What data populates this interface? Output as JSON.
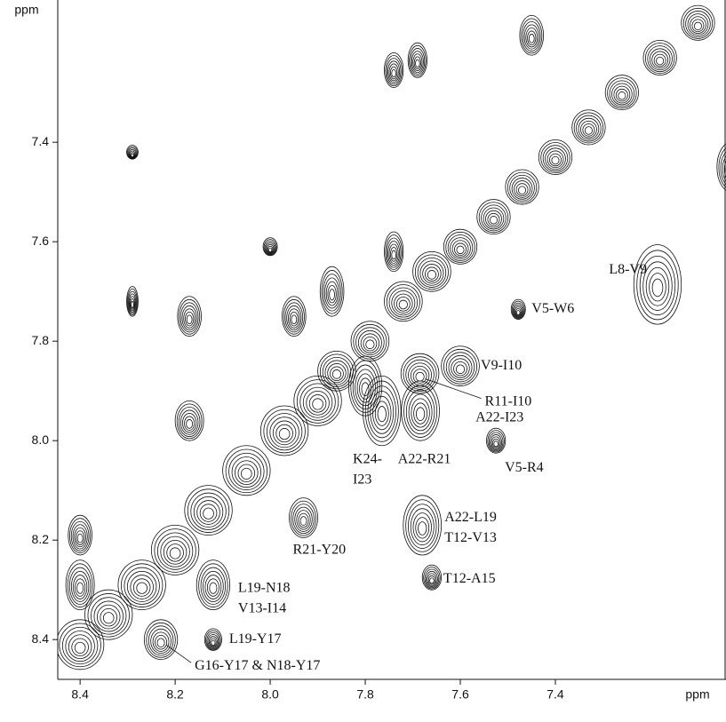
{
  "chart_data": {
    "type": "contour",
    "xlabel": "ppm",
    "ylabel": "ppm",
    "xlim": [
      8.447,
      7.041
    ],
    "ylim": [
      7.114,
      8.48
    ],
    "xticks": [
      8.4,
      8.2,
      {
        "value": 8,
        "label": "8.0"
      },
      7.8,
      7.6,
      7.4
    ],
    "yticks": [
      7.4,
      7.6,
      7.8,
      {
        "value": 8,
        "label": "8.0"
      },
      8.2,
      8.4
    ],
    "color": "#111111",
    "labeled_peaks": [
      {
        "x": 7.185,
        "y": 7.686,
        "w": 0.05,
        "h": 0.08,
        "label": [
          "L8-V9"
        ]
      },
      {
        "x": 7.478,
        "y": 7.736,
        "w": 0.015,
        "h": 0.02,
        "label": [
          "V5-W6"
        ]
      },
      {
        "x": 7.6,
        "y": 7.85,
        "w": 0.04,
        "h": 0.04,
        "label": [
          "V9-I10"
        ]
      },
      {
        "x": 7.685,
        "y": 7.865,
        "w": 0.04,
        "h": 0.04,
        "label": [
          "R11-I10"
        ]
      },
      {
        "x": 7.684,
        "y": 7.94,
        "w": 0.04,
        "h": 0.06,
        "label": [
          "A22-I23"
        ]
      },
      {
        "x": 7.525,
        "y": 8.0,
        "w": 0.02,
        "h": 0.025,
        "label": [
          "V5-R4"
        ]
      },
      {
        "x": 7.765,
        "y": 7.94,
        "w": 0.04,
        "h": 0.07,
        "label": [
          "A22-R21"
        ]
      },
      {
        "x": 7.8,
        "y": 7.89,
        "w": 0.035,
        "h": 0.06,
        "label": [
          "K24-",
          "I23"
        ]
      },
      {
        "x": 7.68,
        "y": 8.17,
        "w": 0.04,
        "h": 0.06,
        "label": [
          "A22-L19",
          "T12-V13"
        ]
      },
      {
        "x": 7.93,
        "y": 8.155,
        "w": 0.03,
        "h": 0.04,
        "label": [
          "R21-Y20"
        ]
      },
      {
        "x": 7.66,
        "y": 8.275,
        "w": 0.02,
        "h": 0.025,
        "label": [
          "T12-A15"
        ]
      },
      {
        "x": 8.12,
        "y": 8.29,
        "w": 0.035,
        "h": 0.05,
        "label": [
          "L19-N18",
          "V13-I14"
        ]
      },
      {
        "x": 8.12,
        "y": 8.4,
        "w": 0.018,
        "h": 0.022,
        "label": [
          "L19-Y17"
        ]
      },
      {
        "x": 8.23,
        "y": 8.4,
        "w": 0.035,
        "h": 0.04,
        "label": [
          "G16-Y17 & N18-Y17"
        ]
      }
    ],
    "peaks": [
      {
        "x": 8.4,
        "y": 8.41,
        "w": 0.05,
        "h": 0.05
      },
      {
        "x": 8.34,
        "y": 8.35,
        "w": 0.05,
        "h": 0.05
      },
      {
        "x": 8.27,
        "y": 8.29,
        "w": 0.05,
        "h": 0.05
      },
      {
        "x": 8.2,
        "y": 8.22,
        "w": 0.05,
        "h": 0.05
      },
      {
        "x": 8.13,
        "y": 8.14,
        "w": 0.05,
        "h": 0.05
      },
      {
        "x": 8.05,
        "y": 8.06,
        "w": 0.05,
        "h": 0.05
      },
      {
        "x": 7.97,
        "y": 7.98,
        "w": 0.05,
        "h": 0.05
      },
      {
        "x": 7.9,
        "y": 7.92,
        "w": 0.05,
        "h": 0.05
      },
      {
        "x": 7.86,
        "y": 7.86,
        "w": 0.04,
        "h": 0.04
      },
      {
        "x": 7.79,
        "y": 7.8,
        "w": 0.04,
        "h": 0.04
      },
      {
        "x": 7.72,
        "y": 7.72,
        "w": 0.04,
        "h": 0.04
      },
      {
        "x": 7.66,
        "y": 7.66,
        "w": 0.04,
        "h": 0.04
      },
      {
        "x": 7.6,
        "y": 7.61,
        "w": 0.035,
        "h": 0.035
      },
      {
        "x": 7.53,
        "y": 7.55,
        "w": 0.035,
        "h": 0.035
      },
      {
        "x": 7.47,
        "y": 7.49,
        "w": 0.035,
        "h": 0.035
      },
      {
        "x": 7.4,
        "y": 7.43,
        "w": 0.035,
        "h": 0.035
      },
      {
        "x": 7.33,
        "y": 7.37,
        "w": 0.035,
        "h": 0.035
      },
      {
        "x": 7.26,
        "y": 7.3,
        "w": 0.035,
        "h": 0.035
      },
      {
        "x": 7.18,
        "y": 7.23,
        "w": 0.035,
        "h": 0.035
      },
      {
        "x": 7.1,
        "y": 7.16,
        "w": 0.035,
        "h": 0.035
      },
      {
        "x": 8.4,
        "y": 8.29,
        "w": 0.03,
        "h": 0.05
      },
      {
        "x": 8.4,
        "y": 8.19,
        "w": 0.025,
        "h": 0.04
      },
      {
        "x": 7.74,
        "y": 7.255,
        "w": 0.02,
        "h": 0.035
      },
      {
        "x": 7.69,
        "y": 7.235,
        "w": 0.02,
        "h": 0.035
      },
      {
        "x": 7.45,
        "y": 7.185,
        "w": 0.025,
        "h": 0.04
      },
      {
        "x": 7.03,
        "y": 7.45,
        "w": 0.03,
        "h": 0.05
      },
      {
        "x": 8.29,
        "y": 7.42,
        "w": 0.012,
        "h": 0.014
      },
      {
        "x": 8.29,
        "y": 7.72,
        "w": 0.012,
        "h": 0.03
      },
      {
        "x": 8.17,
        "y": 7.75,
        "w": 0.025,
        "h": 0.04
      },
      {
        "x": 8.0,
        "y": 7.61,
        "w": 0.015,
        "h": 0.018
      },
      {
        "x": 8.17,
        "y": 7.96,
        "w": 0.03,
        "h": 0.04
      },
      {
        "x": 7.95,
        "y": 7.75,
        "w": 0.025,
        "h": 0.04
      },
      {
        "x": 7.74,
        "y": 7.62,
        "w": 0.02,
        "h": 0.04
      },
      {
        "x": 7.87,
        "y": 7.7,
        "w": 0.025,
        "h": 0.05
      }
    ]
  }
}
